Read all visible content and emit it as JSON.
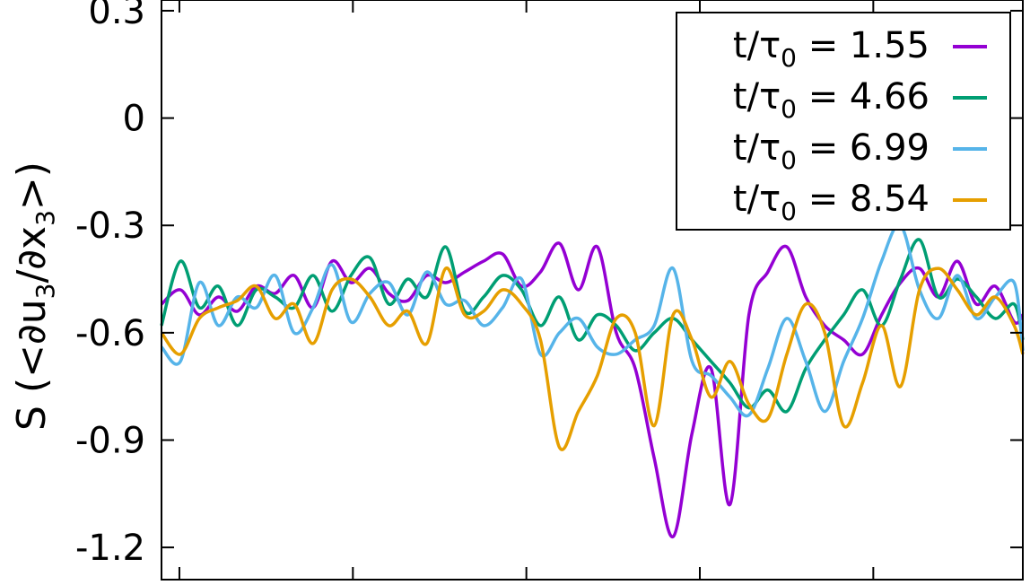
{
  "chart_data": {
    "type": "line",
    "ylabel": {
      "main": "S (<∂u",
      "sub1": "3",
      "mid": "/∂x",
      "sub2": "3",
      "end": ">)"
    },
    "yticks": [
      "0.3",
      "0",
      "-0.3",
      "-0.6",
      "-0.9",
      "-1.2"
    ],
    "ytick_values": [
      0.3,
      0,
      -0.3,
      -0.6,
      -0.9,
      -1.2
    ],
    "ylim": [
      -1.29,
      0.33
    ],
    "xlim": [
      0,
      1
    ],
    "xtick_positions": [
      0.0208,
      0.2222,
      0.4236,
      0.625,
      0.8264
    ],
    "grid": false,
    "legend_position": "top-right",
    "x": [
      0,
      0.022,
      0.044,
      0.066,
      0.088,
      0.11,
      0.132,
      0.154,
      0.176,
      0.198,
      0.22,
      0.242,
      0.264,
      0.286,
      0.308,
      0.33,
      0.352,
      0.374,
      0.396,
      0.418,
      0.44,
      0.462,
      0.484,
      0.506,
      0.528,
      0.55,
      0.572,
      0.594,
      0.616,
      0.638,
      0.66,
      0.682,
      0.704,
      0.726,
      0.748,
      0.77,
      0.792,
      0.814,
      0.836,
      0.858,
      0.88,
      0.902,
      0.924,
      0.946,
      0.968,
      0.99,
      1.0
    ],
    "series": [
      {
        "name_prefix": "t/τ",
        "name_sub": "0",
        "name_suffix": " = 1.55",
        "color": "#9400d3",
        "values": [
          -0.52,
          -0.48,
          -0.55,
          -0.5,
          -0.54,
          -0.47,
          -0.49,
          -0.44,
          -0.53,
          -0.4,
          -0.46,
          -0.42,
          -0.49,
          -0.51,
          -0.44,
          -0.46,
          -0.43,
          -0.4,
          -0.38,
          -0.47,
          -0.43,
          -0.35,
          -0.48,
          -0.36,
          -0.6,
          -0.7,
          -0.95,
          -1.17,
          -0.88,
          -0.7,
          -1.08,
          -0.55,
          -0.43,
          -0.36,
          -0.5,
          -0.58,
          -0.62,
          -0.66,
          -0.55,
          -0.46,
          -0.42,
          -0.5,
          -0.4,
          -0.52,
          -0.47,
          -0.57,
          -0.55
        ]
      },
      {
        "name_prefix": "t/τ",
        "name_sub": "0",
        "name_suffix": " = 4.66",
        "color": "#009e73",
        "values": [
          -0.58,
          -0.4,
          -0.53,
          -0.47,
          -0.58,
          -0.48,
          -0.5,
          -0.53,
          -0.44,
          -0.54,
          -0.44,
          -0.39,
          -0.52,
          -0.45,
          -0.5,
          -0.36,
          -0.54,
          -0.5,
          -0.44,
          -0.48,
          -0.58,
          -0.5,
          -0.62,
          -0.55,
          -0.58,
          -0.65,
          -0.6,
          -0.56,
          -0.62,
          -0.68,
          -0.74,
          -0.81,
          -0.76,
          -0.82,
          -0.7,
          -0.62,
          -0.55,
          -0.48,
          -0.58,
          -0.45,
          -0.34,
          -0.5,
          -0.45,
          -0.5,
          -0.56,
          -0.52,
          -0.62
        ]
      },
      {
        "name_prefix": "t/τ",
        "name_sub": "0",
        "name_suffix": " = 6.99",
        "color": "#56b4e9",
        "values": [
          -0.64,
          -0.68,
          -0.46,
          -0.58,
          -0.5,
          -0.53,
          -0.44,
          -0.6,
          -0.53,
          -0.41,
          -0.57,
          -0.49,
          -0.46,
          -0.55,
          -0.43,
          -0.52,
          -0.51,
          -0.58,
          -0.53,
          -0.45,
          -0.66,
          -0.6,
          -0.56,
          -0.64,
          -0.66,
          -0.62,
          -0.58,
          -0.42,
          -0.68,
          -0.72,
          -0.78,
          -0.83,
          -0.7,
          -0.56,
          -0.68,
          -0.82,
          -0.68,
          -0.56,
          -0.4,
          -0.3,
          -0.48,
          -0.56,
          -0.44,
          -0.56,
          -0.5,
          -0.46,
          -0.65
        ]
      },
      {
        "name_prefix": "t/τ",
        "name_sub": "0",
        "name_suffix": " = 8.54",
        "color": "#e69f00",
        "values": [
          -0.6,
          -0.66,
          -0.56,
          -0.53,
          -0.51,
          -0.47,
          -0.56,
          -0.52,
          -0.63,
          -0.48,
          -0.45,
          -0.5,
          -0.58,
          -0.54,
          -0.63,
          -0.42,
          -0.55,
          -0.54,
          -0.48,
          -0.52,
          -0.62,
          -0.92,
          -0.82,
          -0.72,
          -0.56,
          -0.6,
          -0.86,
          -0.55,
          -0.62,
          -0.78,
          -0.68,
          -0.8,
          -0.84,
          -0.66,
          -0.52,
          -0.6,
          -0.86,
          -0.74,
          -0.58,
          -0.75,
          -0.48,
          -0.42,
          -0.48,
          -0.55,
          -0.5,
          -0.58,
          -0.66
        ]
      }
    ]
  }
}
